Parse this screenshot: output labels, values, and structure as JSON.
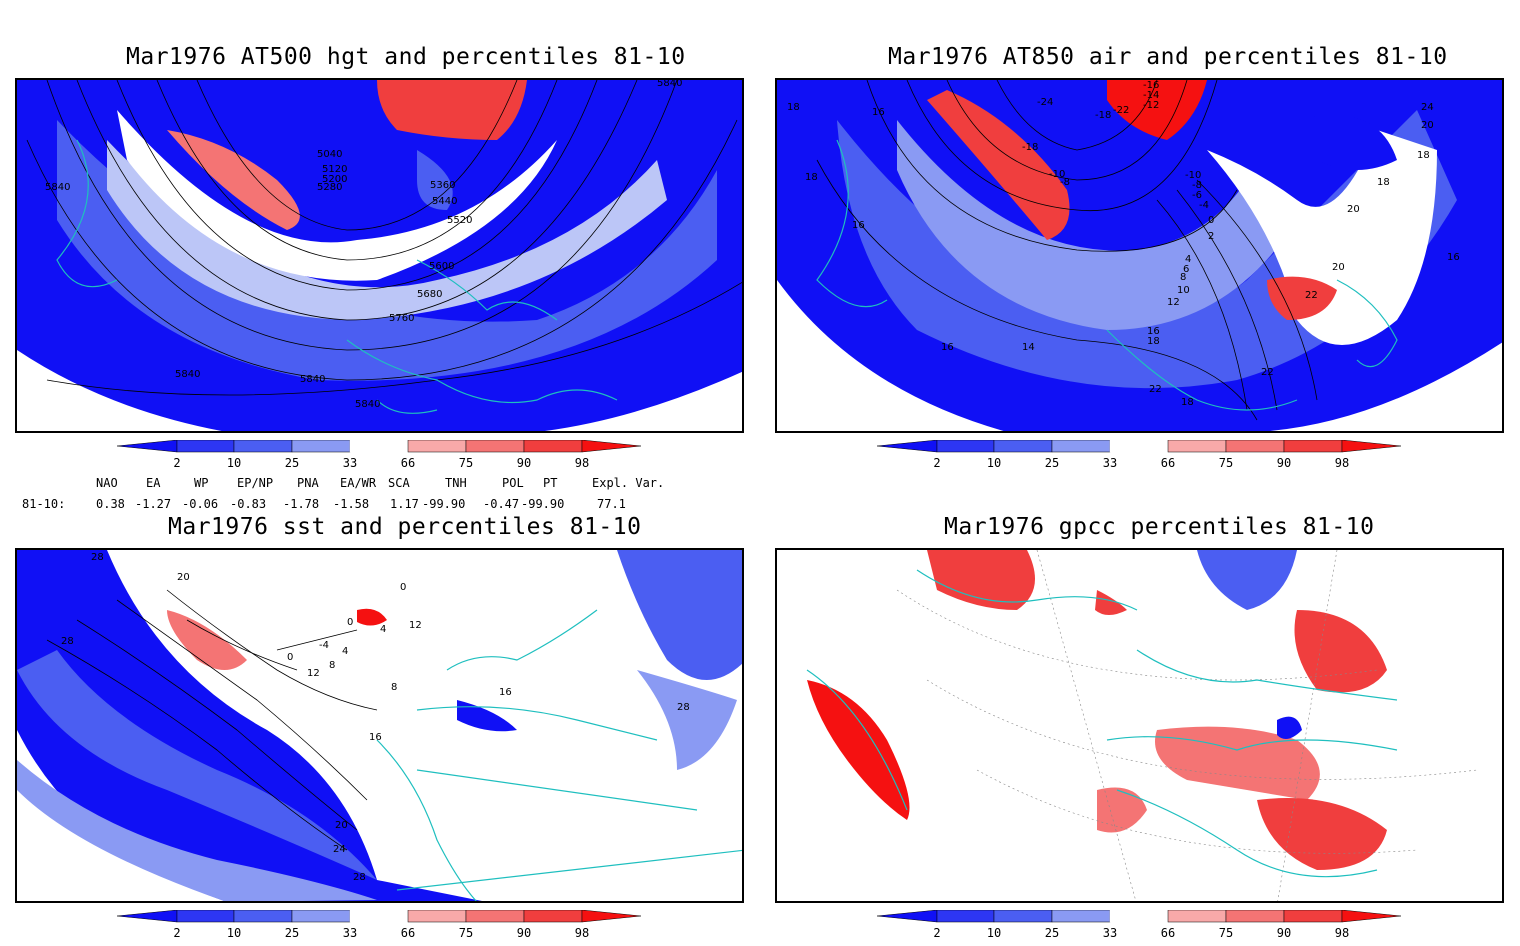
{
  "colors": {
    "deep_blue": "#1010f5",
    "mid_blue": "#4b5ef2",
    "light_blue": "#8a9af3",
    "pale_blue": "#bcc6f7",
    "pale_red": "#f8a9a9",
    "light_red": "#f47474",
    "mid_red": "#f03e3e",
    "deep_red": "#f51111",
    "coast": "#1fbfbf"
  },
  "panels": [
    {
      "title": "Mar1976 AT500 hgt and percentiles 81-10",
      "contour_labels": [
        "5040",
        "5120",
        "5200",
        "5280",
        "5360",
        "5440",
        "5520",
        "5600",
        "5680",
        "5760",
        "5840",
        "5840",
        "5840",
        "5840",
        "5840"
      ],
      "colorbar_ticks": [
        "2",
        "10",
        "25",
        "33",
        "66",
        "75",
        "90",
        "98"
      ]
    },
    {
      "title": "Mar1976 AT850 air and percentiles 81-10",
      "contour_labels": [
        "-16",
        "-14",
        "-12",
        "-24",
        "-18",
        "-22",
        "-18",
        "-10",
        "-8",
        "-10",
        "-8",
        "-6",
        "-4",
        "0",
        "2",
        "4",
        "6",
        "8",
        "10",
        "12",
        "14",
        "16",
        "16",
        "18",
        "18",
        "18",
        "16",
        "16",
        "18",
        "20",
        "22",
        "22",
        "24",
        "22",
        "20",
        "20",
        "16",
        "18",
        "18"
      ],
      "colorbar_ticks": [
        "2",
        "10",
        "25",
        "33",
        "66",
        "75",
        "90",
        "98"
      ]
    },
    {
      "title": "Mar1976 sst and percentiles 81-10",
      "contour_labels": [
        "28",
        "20",
        "28",
        "0",
        "4",
        "0",
        "-4",
        "0",
        "4",
        "8",
        "12",
        "8",
        "12",
        "16",
        "20",
        "24",
        "28",
        "28",
        "16"
      ],
      "colorbar_ticks": [
        "2",
        "10",
        "25",
        "33",
        "66",
        "75",
        "90",
        "98"
      ]
    },
    {
      "title": "Mar1976 gpcc percentiles 81-10",
      "contour_labels": [],
      "colorbar_ticks": [
        "2",
        "10",
        "25",
        "33",
        "66",
        "75",
        "90",
        "98"
      ]
    }
  ],
  "teleconnections": {
    "headers": [
      "NAO",
      "EA",
      "WP",
      "EP/NP",
      "PNA",
      "EA/WR",
      "SCA",
      "TNH",
      "POL",
      "PT",
      "Expl. Var."
    ],
    "row_label": "81-10:",
    "values": [
      "0.38",
      "-1.27",
      "-0.06",
      "-0.83",
      "-1.78",
      "-1.58",
      "1.17",
      "-99.90",
      "-0.47",
      "-99.90",
      "77.1"
    ]
  }
}
